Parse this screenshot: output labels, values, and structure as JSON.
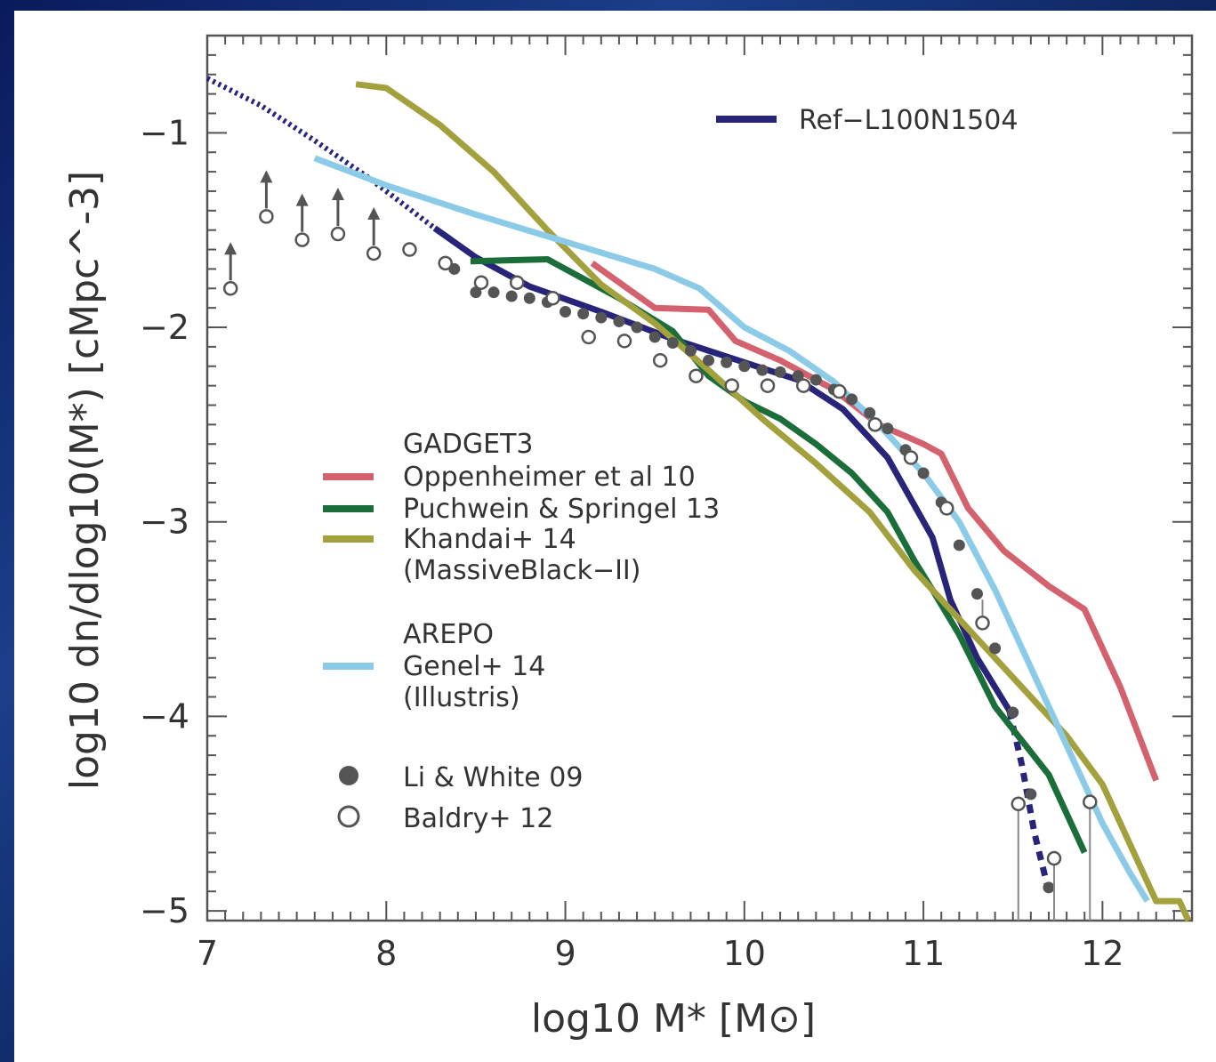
{
  "chart_data": {
    "type": "line",
    "xlabel": "log10 M* [M⊙]",
    "ylabel": "log10 dn/dlog10(M*) [cMpc^-3]",
    "xlim": [
      7,
      12.5
    ],
    "ylim": [
      -5.05,
      -0.5
    ],
    "xticks": [
      7,
      8,
      9,
      10,
      11,
      12
    ],
    "yticks": [
      -1,
      -2,
      -3,
      -4,
      -5
    ],
    "x_tick_labels": [
      "7",
      "8",
      "9",
      "10",
      "11",
      "12"
    ],
    "y_tick_labels": [
      "−1",
      "−2",
      "−3",
      "−4",
      "−5"
    ],
    "legend_groups": [
      {
        "title": "",
        "entries": [
          "Ref−L100N1504"
        ]
      },
      {
        "title": "GADGET3",
        "entries": [
          "Oppenheimer et al 10",
          "Puchwein & Springel 13",
          "Khandai+ 14 (MassiveBlack−II)"
        ]
      },
      {
        "title": "AREPO",
        "entries": [
          "Genel+ 14 (Illustris)"
        ]
      },
      {
        "title": "",
        "entries": [
          "Li & White 09",
          "Baldry+ 12"
        ]
      }
    ],
    "legend_lines": {
      "ref": "Ref−L100N1504",
      "gadget_title": "GADGET3",
      "opp": "Oppenheimer et al 10",
      "puch": "Puchwein & Springel 13",
      "khandai1": "Khandai+ 14",
      "khandai2": "(MassiveBlack−II)",
      "arepo_title": "AREPO",
      "genel1": "Genel+ 14",
      "genel2": "(Illustris)",
      "li": "Li & White 09",
      "baldry": "Baldry+ 12"
    },
    "series": [
      {
        "name": "Ref−L100N1504",
        "color": "#27247a",
        "width": 5,
        "points": [
          [
            8.27,
            -1.49
          ],
          [
            8.5,
            -1.64
          ],
          [
            8.8,
            -1.79
          ],
          [
            9.2,
            -1.92
          ],
          [
            9.6,
            -2.06
          ],
          [
            10.0,
            -2.18
          ],
          [
            10.3,
            -2.27
          ],
          [
            10.55,
            -2.42
          ],
          [
            10.8,
            -2.67
          ],
          [
            11.05,
            -3.08
          ],
          [
            11.15,
            -3.4
          ],
          [
            11.3,
            -3.7
          ],
          [
            11.48,
            -3.97
          ]
        ],
        "dotted_start": [
          [
            7.0,
            -0.72
          ],
          [
            7.3,
            -0.86
          ],
          [
            7.6,
            -1.04
          ],
          [
            7.9,
            -1.23
          ],
          [
            8.27,
            -1.49
          ]
        ],
        "dashed_end": [
          [
            11.48,
            -3.97
          ],
          [
            11.55,
            -4.25
          ],
          [
            11.62,
            -4.6
          ],
          [
            11.7,
            -4.9
          ]
        ]
      },
      {
        "name": "Oppenheimer et al 10",
        "color": "#d4616e",
        "width": 5,
        "points": [
          [
            9.15,
            -1.67
          ],
          [
            9.5,
            -1.9
          ],
          [
            9.8,
            -1.91
          ],
          [
            9.95,
            -2.07
          ],
          [
            10.2,
            -2.17
          ],
          [
            10.5,
            -2.32
          ],
          [
            10.75,
            -2.5
          ],
          [
            11.0,
            -2.6
          ],
          [
            11.1,
            -2.65
          ],
          [
            11.25,
            -2.93
          ],
          [
            11.45,
            -3.15
          ],
          [
            11.7,
            -3.33
          ],
          [
            11.9,
            -3.45
          ],
          [
            12.1,
            -3.85
          ],
          [
            12.3,
            -4.33
          ]
        ]
      },
      {
        "name": "Puchwein & Springel 13",
        "color": "#1b6e3a",
        "width": 5,
        "points": [
          [
            8.47,
            -1.66
          ],
          [
            8.9,
            -1.65
          ],
          [
            9.3,
            -1.85
          ],
          [
            9.6,
            -2.02
          ],
          [
            9.8,
            -2.25
          ],
          [
            10.0,
            -2.38
          ],
          [
            10.2,
            -2.47
          ],
          [
            10.4,
            -2.6
          ],
          [
            10.6,
            -2.75
          ],
          [
            10.8,
            -2.95
          ],
          [
            10.95,
            -3.2
          ],
          [
            11.05,
            -3.35
          ],
          [
            11.2,
            -3.58
          ],
          [
            11.4,
            -3.95
          ],
          [
            11.7,
            -4.3
          ],
          [
            11.9,
            -4.7
          ]
        ]
      },
      {
        "name": "Khandai+ 14 (MassiveBlack−II)",
        "color": "#a2a13d",
        "width": 5,
        "points": [
          [
            7.83,
            -0.75
          ],
          [
            8.0,
            -0.77
          ],
          [
            8.3,
            -0.96
          ],
          [
            8.6,
            -1.2
          ],
          [
            8.9,
            -1.5
          ],
          [
            9.2,
            -1.78
          ],
          [
            9.5,
            -1.98
          ],
          [
            9.8,
            -2.22
          ],
          [
            10.1,
            -2.47
          ],
          [
            10.4,
            -2.7
          ],
          [
            10.7,
            -2.95
          ],
          [
            10.95,
            -3.25
          ],
          [
            11.2,
            -3.5
          ],
          [
            11.5,
            -3.8
          ],
          [
            11.8,
            -4.1
          ],
          [
            12.0,
            -4.35
          ],
          [
            12.2,
            -4.75
          ],
          [
            12.3,
            -4.95
          ],
          [
            12.43,
            -4.95
          ],
          [
            12.48,
            -5.05
          ]
        ]
      },
      {
        "name": "Genel+ 14 (Illustris)",
        "color": "#8ccbe8",
        "width": 5,
        "points": [
          [
            7.6,
            -1.13
          ],
          [
            8.0,
            -1.27
          ],
          [
            8.5,
            -1.42
          ],
          [
            9.0,
            -1.56
          ],
          [
            9.5,
            -1.7
          ],
          [
            9.75,
            -1.8
          ],
          [
            10.0,
            -2.0
          ],
          [
            10.25,
            -2.12
          ],
          [
            10.5,
            -2.28
          ],
          [
            10.75,
            -2.5
          ],
          [
            11.0,
            -2.75
          ],
          [
            11.2,
            -3.0
          ],
          [
            11.4,
            -3.35
          ],
          [
            11.6,
            -3.75
          ],
          [
            11.8,
            -4.15
          ],
          [
            12.0,
            -4.55
          ],
          [
            12.15,
            -4.8
          ],
          [
            12.25,
            -4.95
          ]
        ]
      }
    ],
    "scatter": [
      {
        "name": "Li & White 09",
        "marker": "filled-circle",
        "color": "#555555",
        "points": [
          [
            8.38,
            -1.7
          ],
          [
            8.5,
            -1.82
          ],
          [
            8.6,
            -1.82
          ],
          [
            8.7,
            -1.84
          ],
          [
            8.8,
            -1.85
          ],
          [
            8.9,
            -1.87
          ],
          [
            9.0,
            -1.92
          ],
          [
            9.1,
            -1.93
          ],
          [
            9.2,
            -1.95
          ],
          [
            9.3,
            -1.97
          ],
          [
            9.4,
            -2.0
          ],
          [
            9.5,
            -2.05
          ],
          [
            9.6,
            -2.08
          ],
          [
            9.7,
            -2.12
          ],
          [
            9.8,
            -2.17
          ],
          [
            9.9,
            -2.18
          ],
          [
            10.0,
            -2.2
          ],
          [
            10.1,
            -2.22
          ],
          [
            10.2,
            -2.23
          ],
          [
            10.3,
            -2.25
          ],
          [
            10.4,
            -2.27
          ],
          [
            10.5,
            -2.32
          ],
          [
            10.6,
            -2.37
          ],
          [
            10.7,
            -2.44
          ],
          [
            10.8,
            -2.52
          ],
          [
            10.9,
            -2.63
          ],
          [
            11.0,
            -2.75
          ],
          [
            11.1,
            -2.9
          ],
          [
            11.2,
            -3.12
          ],
          [
            11.3,
            -3.37
          ],
          [
            11.4,
            -3.65
          ],
          [
            11.5,
            -3.98
          ],
          [
            11.6,
            -4.4
          ],
          [
            11.7,
            -4.88
          ]
        ]
      },
      {
        "name": "Baldry+ 12",
        "marker": "open-circle",
        "color": "#555555",
        "points": [
          [
            7.13,
            -1.8
          ],
          [
            7.33,
            -1.43
          ],
          [
            7.53,
            -1.55
          ],
          [
            7.73,
            -1.52
          ],
          [
            7.93,
            -1.62
          ],
          [
            8.13,
            -1.6
          ],
          [
            8.33,
            -1.67
          ],
          [
            8.53,
            -1.77
          ],
          [
            8.73,
            -1.77
          ],
          [
            8.93,
            -1.85
          ],
          [
            9.13,
            -2.05
          ],
          [
            9.33,
            -2.07
          ],
          [
            9.53,
            -2.17
          ],
          [
            9.73,
            -2.25
          ],
          [
            9.93,
            -2.3
          ],
          [
            10.13,
            -2.3
          ],
          [
            10.33,
            -2.3
          ],
          [
            10.53,
            -2.33
          ],
          [
            10.73,
            -2.5
          ],
          [
            10.93,
            -2.67
          ],
          [
            11.13,
            -2.93
          ],
          [
            11.33,
            -3.52
          ],
          [
            11.53,
            -4.45
          ],
          [
            11.73,
            -4.73
          ],
          [
            11.93,
            -4.44
          ]
        ],
        "lower_limits": [
          7.13,
          7.33,
          7.53,
          7.73,
          7.93
        ],
        "error_bars": [
          [
            11.53,
            -4.45,
            -5.05
          ],
          [
            11.73,
            -4.73,
            -5.05
          ],
          [
            11.93,
            -4.44,
            -5.05
          ],
          [
            11.33,
            -3.52,
            -3.4
          ]
        ]
      }
    ]
  }
}
